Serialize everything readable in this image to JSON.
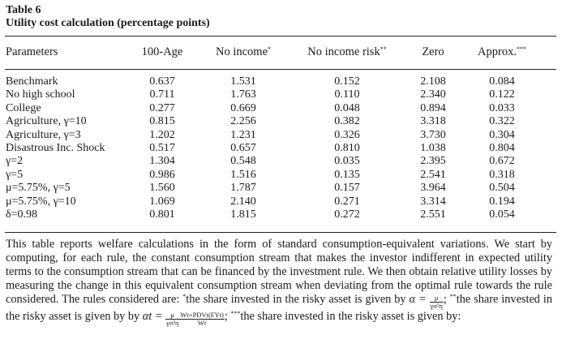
{
  "table": {
    "number": "Table 6",
    "title": "Utility cost calculation (percentage points)",
    "columns": [
      "Parameters",
      "100-Age",
      "No income",
      "No income risk",
      "Zero",
      "Approx."
    ],
    "column_marks": [
      "",
      "",
      "*",
      "**",
      "",
      "***"
    ],
    "rows": [
      {
        "label": "Benchmark",
        "values": [
          "0.637",
          "1.531",
          "0.152",
          "2.108",
          "0.084"
        ]
      },
      {
        "label": "No high school",
        "values": [
          "0.711",
          "1.763",
          "0.110",
          "2.340",
          "0.122"
        ]
      },
      {
        "label": "College",
        "values": [
          "0.277",
          "0.669",
          "0.048",
          "0.894",
          "0.033"
        ]
      },
      {
        "label": "Agriculture, γ=10",
        "values": [
          "0.815",
          "2.256",
          "0.382",
          "3.318",
          "0.322"
        ]
      },
      {
        "label": "Agriculture, γ=3",
        "values": [
          "1.202",
          "1.231",
          "0.326",
          "3.730",
          "0.304"
        ]
      },
      {
        "label": "Disastrous Inc. Shock",
        "values": [
          "0.517",
          "0.657",
          "0.810",
          "1.038",
          "0.804"
        ]
      },
      {
        "label": "γ=2",
        "values": [
          "1.304",
          "0.548",
          "0.035",
          "2.395",
          "0.672"
        ]
      },
      {
        "label": "γ=5",
        "values": [
          "0.986",
          "1.516",
          "0.135",
          "2.541",
          "0.318"
        ]
      },
      {
        "label": "μ=5.75%, γ=5",
        "values": [
          "1.560",
          "1.787",
          "0.157",
          "3.964",
          "0.504"
        ]
      },
      {
        "label": "μ=5.75%, γ=10",
        "values": [
          "1.069",
          "2.140",
          "0.271",
          "3.314",
          "0.194"
        ]
      },
      {
        "label": "δ=0.98",
        "values": [
          "0.801",
          "1.815",
          "0.272",
          "2.551",
          "0.054"
        ]
      }
    ]
  },
  "note": {
    "body": "This table reports welfare calculations in the form of standard consumption-equivalent variations. We start by computing, for each rule, the constant consumption stream that makes the investor indifferent in expected utility terms to the consumption stream that can be financed by the investment rule. We then obtain relative utility losses by measuring the change in this equivalent consumption stream when deviating from the optimal rule towards the rule considered. The rules considered are:",
    "mark1": "*",
    "rule1": "the share invested in the risky asset is given by",
    "mark2": "**",
    "rule2": "the share invested in the risky asset is given by",
    "mark3": "***",
    "rule3": "the share invested in the risky asset is given by:",
    "formula1_lhs": "α =",
    "formula1_num": "μ",
    "formula1_den": "γσ²η",
    "formula2_lhs": "αt =",
    "formula2_a_num": "μ",
    "formula2_a_den": "γσ²η",
    "formula2_b_num": "Wt+PDVt(FYt)",
    "formula2_b_den": "Wt"
  }
}
